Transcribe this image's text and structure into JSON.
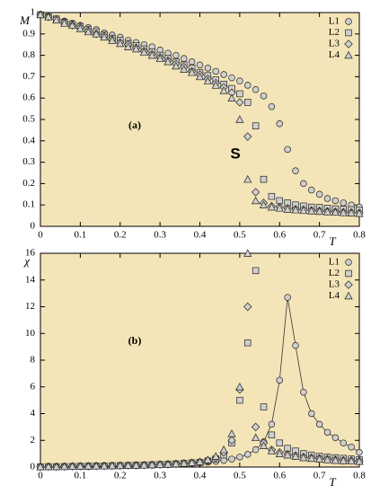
{
  "chart_data": [
    {
      "type": "scatter",
      "ylabel": "M",
      "xlabel": "T",
      "annotations": [
        "(a)",
        "S"
      ],
      "xlim": [
        0,
        0.8
      ],
      "xticks": [
        0,
        0.1,
        0.2,
        0.3,
        0.4,
        0.5,
        0.6,
        0.7,
        0.8
      ],
      "ylim": [
        0,
        1
      ],
      "yticks": [
        0,
        0.1,
        0.2,
        0.3,
        0.4,
        0.5,
        0.6,
        0.7,
        0.8,
        0.9,
        1
      ],
      "background": "#f4e5b8",
      "legend": "upper right",
      "x": [
        0,
        0.02,
        0.04,
        0.06,
        0.08,
        0.1,
        0.12,
        0.14,
        0.16,
        0.18,
        0.2,
        0.22,
        0.24,
        0.26,
        0.28,
        0.3,
        0.32,
        0.34,
        0.36,
        0.38,
        0.4,
        0.42,
        0.44,
        0.46,
        0.48,
        0.5,
        0.52,
        0.54,
        0.56,
        0.58,
        0.6,
        0.62,
        0.64,
        0.66,
        0.68,
        0.7,
        0.72,
        0.74,
        0.76,
        0.78,
        0.8
      ],
      "series": [
        {
          "name": "L1",
          "marker": "circle",
          "color": "#cfcfcf",
          "values": [
            0.99,
            0.98,
            0.97,
            0.96,
            0.95,
            0.94,
            0.93,
            0.92,
            0.905,
            0.895,
            0.885,
            0.87,
            0.86,
            0.85,
            0.84,
            0.825,
            0.81,
            0.8,
            0.785,
            0.77,
            0.755,
            0.74,
            0.725,
            0.71,
            0.695,
            0.68,
            0.66,
            0.64,
            0.61,
            0.56,
            0.48,
            0.36,
            0.26,
            0.2,
            0.17,
            0.15,
            0.13,
            0.12,
            0.11,
            0.1,
            0.09
          ]
        },
        {
          "name": "L2",
          "marker": "square",
          "color": "#cfcfcf",
          "values": [
            0.99,
            0.98,
            0.97,
            0.955,
            0.945,
            0.935,
            0.92,
            0.91,
            0.895,
            0.88,
            0.87,
            0.855,
            0.845,
            0.83,
            0.815,
            0.8,
            0.785,
            0.77,
            0.755,
            0.74,
            0.72,
            0.705,
            0.685,
            0.665,
            0.645,
            0.62,
            0.58,
            0.47,
            0.22,
            0.14,
            0.12,
            0.11,
            0.1,
            0.095,
            0.09,
            0.088,
            0.085,
            0.082,
            0.08,
            0.078,
            0.075
          ]
        },
        {
          "name": "L3",
          "marker": "diamond",
          "color": "#cfcfcf",
          "values": [
            0.99,
            0.98,
            0.97,
            0.955,
            0.94,
            0.93,
            0.915,
            0.9,
            0.89,
            0.875,
            0.86,
            0.85,
            0.835,
            0.82,
            0.805,
            0.79,
            0.775,
            0.76,
            0.745,
            0.725,
            0.71,
            0.69,
            0.67,
            0.65,
            0.625,
            0.58,
            0.42,
            0.16,
            0.11,
            0.095,
            0.09,
            0.085,
            0.08,
            0.078,
            0.075,
            0.072,
            0.07,
            0.068,
            0.066,
            0.065,
            0.063
          ]
        },
        {
          "name": "L4",
          "marker": "triangle",
          "color": "#cfcfcf",
          "values": [
            0.99,
            0.98,
            0.965,
            0.95,
            0.94,
            0.925,
            0.91,
            0.9,
            0.885,
            0.87,
            0.855,
            0.84,
            0.83,
            0.815,
            0.8,
            0.785,
            0.77,
            0.75,
            0.735,
            0.72,
            0.7,
            0.68,
            0.66,
            0.635,
            0.6,
            0.5,
            0.22,
            0.12,
            0.1,
            0.09,
            0.085,
            0.08,
            0.077,
            0.074,
            0.072,
            0.07,
            0.068,
            0.066,
            0.064,
            0.062,
            0.06
          ]
        }
      ]
    },
    {
      "type": "scatter",
      "ylabel": "χ",
      "xlabel": "T",
      "annotations": [
        "(b)"
      ],
      "xlim": [
        0,
        0.8
      ],
      "xticks": [
        0,
        0.1,
        0.2,
        0.3,
        0.4,
        0.5,
        0.6,
        0.7,
        0.8
      ],
      "ylim": [
        0,
        16
      ],
      "yticks": [
        0,
        2,
        4,
        6,
        8,
        10,
        12,
        14,
        16
      ],
      "background": "#f4e5b8",
      "legend": "upper right",
      "x": [
        0,
        0.02,
        0.04,
        0.06,
        0.08,
        0.1,
        0.12,
        0.14,
        0.16,
        0.18,
        0.2,
        0.22,
        0.24,
        0.26,
        0.28,
        0.3,
        0.32,
        0.34,
        0.36,
        0.38,
        0.4,
        0.42,
        0.44,
        0.46,
        0.48,
        0.5,
        0.52,
        0.54,
        0.56,
        0.58,
        0.6,
        0.62,
        0.64,
        0.66,
        0.68,
        0.7,
        0.72,
        0.74,
        0.76,
        0.78,
        0.8
      ],
      "series": [
        {
          "name": "L1",
          "marker": "circle",
          "color": "#cfcfcf",
          "connect": true,
          "values": [
            0.02,
            0.03,
            0.03,
            0.04,
            0.05,
            0.05,
            0.06,
            0.07,
            0.08,
            0.09,
            0.1,
            0.11,
            0.12,
            0.14,
            0.15,
            0.17,
            0.19,
            0.22,
            0.25,
            0.28,
            0.32,
            0.37,
            0.43,
            0.5,
            0.6,
            0.75,
            0.95,
            1.3,
            1.9,
            3.2,
            6.5,
            12.7,
            9.1,
            5.6,
            4.0,
            3.2,
            2.6,
            2.2,
            1.8,
            1.5,
            1.1
          ]
        },
        {
          "name": "L2",
          "marker": "square",
          "color": "#cfcfcf",
          "values": [
            0.02,
            0.03,
            0.03,
            0.04,
            0.05,
            0.06,
            0.07,
            0.08,
            0.09,
            0.1,
            0.11,
            0.12,
            0.14,
            0.15,
            0.17,
            0.19,
            0.21,
            0.24,
            0.27,
            0.31,
            0.35,
            0.45,
            0.6,
            0.9,
            1.8,
            5.0,
            9.3,
            14.7,
            4.5,
            2.4,
            1.8,
            1.4,
            1.2,
            1.0,
            0.9,
            0.8,
            0.75,
            0.7,
            0.65,
            0.6,
            0.55
          ]
        },
        {
          "name": "L3",
          "marker": "diamond",
          "color": "#cfcfcf",
          "values": [
            0.02,
            0.03,
            0.03,
            0.04,
            0.05,
            0.06,
            0.07,
            0.08,
            0.09,
            0.1,
            0.11,
            0.12,
            0.13,
            0.15,
            0.17,
            0.19,
            0.21,
            0.24,
            0.28,
            0.32,
            0.38,
            0.5,
            0.7,
            1.1,
            2.0,
            5.8,
            12.0,
            3.0,
            1.8,
            1.3,
            1.1,
            0.95,
            0.85,
            0.75,
            0.7,
            0.65,
            0.6,
            0.55,
            0.5,
            0.48,
            0.45
          ]
        },
        {
          "name": "L4",
          "marker": "triangle",
          "color": "#cfcfcf",
          "values": [
            0.02,
            0.03,
            0.03,
            0.04,
            0.05,
            0.06,
            0.07,
            0.08,
            0.09,
            0.1,
            0.11,
            0.12,
            0.13,
            0.15,
            0.17,
            0.19,
            0.21,
            0.24,
            0.28,
            0.32,
            0.4,
            0.55,
            0.8,
            1.3,
            2.5,
            6.0,
            16.0,
            2.2,
            1.6,
            1.2,
            1.0,
            0.9,
            0.8,
            0.7,
            0.65,
            0.6,
            0.55,
            0.5,
            0.47,
            0.45,
            0.42
          ]
        }
      ]
    }
  ]
}
